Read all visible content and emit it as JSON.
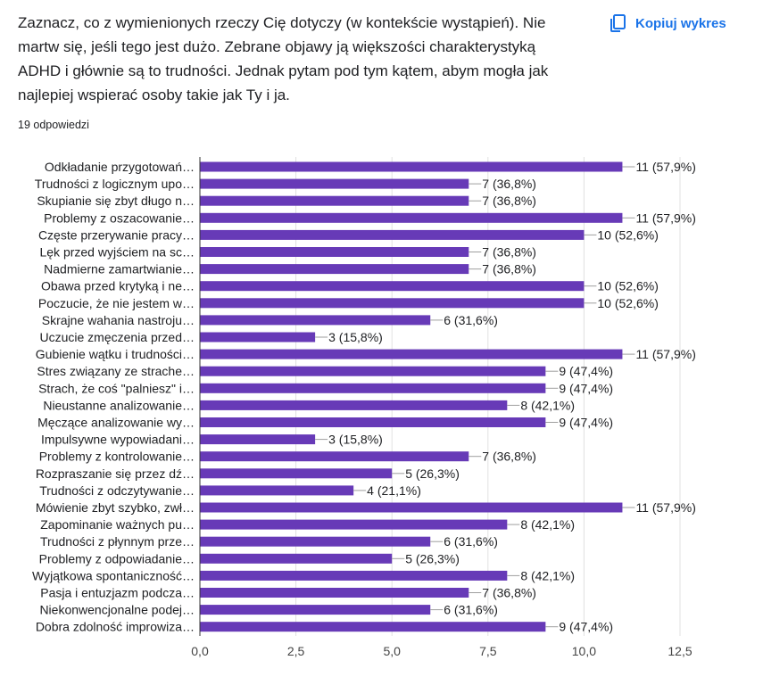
{
  "question": {
    "text": "Zaznacz, co z wymienionych rzeczy Cię dotyczy (w kontekście wystąpień). Nie martw się, jeśli tego jest dużo. Zebrane objawy ją większości charakterystyką ADHD i głównie są to trudności. Jednak pytam pod tym kątem, abym mogła jak najlepiej wspierać osoby takie jak Ty i ja.",
    "responses": "19 odpowiedzi"
  },
  "copy_button": {
    "label": "Kopiuj wykres",
    "icon": "copy-icon"
  },
  "colors": {
    "bar": "#673ab7",
    "accent": "#1a73e8",
    "grid": "#e0e0e0",
    "text": "#202124",
    "axis_text": "#444444"
  },
  "chart_data": {
    "type": "bar",
    "orientation": "horizontal",
    "categories": [
      "Odkładanie przygotowań…",
      "Trudności z logicznym upo…",
      "Skupianie się zbyt długo n…",
      "Problemy z oszacowanie…",
      "Częste przerywanie pracy…",
      "Lęk przed wyjściem na sc…",
      "Nadmierne zamartwianie…",
      "Obawa przed krytyką i ne…",
      "Poczucie, że nie jestem w…",
      "Skrajne wahania nastroju…",
      "Uczucie zmęczenia przed…",
      "Gubienie wątku i trudności…",
      "Stres związany ze strache…",
      "Strach, że coś \"palniesz\" i…",
      "Nieustanne analizowanie…",
      "Męczące analizowanie wy…",
      "Impulsywne wypowiadani…",
      "Problemy z kontrolowanie…",
      "Rozpraszanie się przez dź…",
      "Trudności z odczytywanie…",
      "Mówienie zbyt szybko, zwł…",
      "Zapominanie ważnych pu…",
      "Trudności z płynnym prze…",
      "Problemy z odpowiadanie…",
      "Wyjątkowa spontaniczność…",
      "Pasja i entuzjazm podcza…",
      "Niekonwencjonalne podej…",
      "Dobra zdolność improwiza…"
    ],
    "values": [
      11,
      7,
      7,
      11,
      10,
      7,
      7,
      10,
      10,
      6,
      3,
      11,
      9,
      9,
      8,
      9,
      3,
      7,
      5,
      4,
      11,
      8,
      6,
      5,
      8,
      7,
      6,
      9
    ],
    "value_labels": [
      "11 (57,9%)",
      "7 (36,8%)",
      "7 (36,8%)",
      "11 (57,9%)",
      "10 (52,6%)",
      "7 (36,8%)",
      "7 (36,8%)",
      "10 (52,6%)",
      "10 (52,6%)",
      "6 (31,6%)",
      "3 (15,8%)",
      "11 (57,9%)",
      "9 (47,4%)",
      "9 (47,4%)",
      "8 (42,1%)",
      "9 (47,4%)",
      "3 (15,8%)",
      "7 (36,8%)",
      "5 (26,3%)",
      "4 (21,1%)",
      "11 (57,9%)",
      "8 (42,1%)",
      "6 (31,6%)",
      "5 (26,3%)",
      "8 (42,1%)",
      "7 (36,8%)",
      "6 (31,6%)",
      "9 (47,4%)"
    ],
    "xlim": [
      0,
      12.5
    ],
    "xticks": [
      0,
      2.5,
      5,
      7.5,
      10,
      12.5
    ],
    "xtick_labels": [
      "0,0",
      "2,5",
      "5,0",
      "7,5",
      "10,0",
      "12,5"
    ],
    "title": "",
    "xlabel": "",
    "ylabel": "",
    "grid": true
  }
}
